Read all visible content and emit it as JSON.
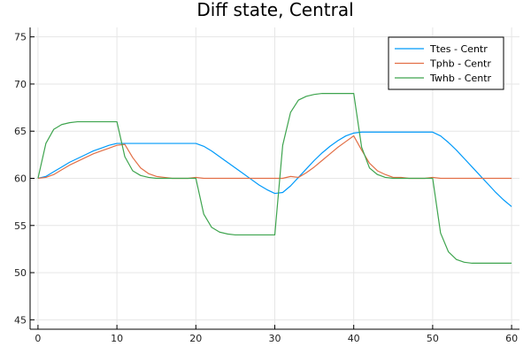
{
  "chart_data": {
    "type": "line",
    "title": "Diff state, Central",
    "xlabel": "",
    "ylabel": "",
    "xlim": [
      -1,
      61
    ],
    "ylim": [
      44,
      76
    ],
    "xticks": [
      0,
      10,
      20,
      30,
      40,
      50,
      60
    ],
    "yticks": [
      45,
      50,
      55,
      60,
      65,
      70,
      75
    ],
    "grid": true,
    "legend_position": "top-right",
    "series": [
      {
        "name": "Ttes - Centr",
        "color": "#009AFA",
        "x": [
          0,
          1,
          2,
          3,
          4,
          5,
          6,
          7,
          8,
          9,
          10,
          11,
          12,
          13,
          14,
          15,
          16,
          17,
          18,
          19,
          20,
          21,
          22,
          23,
          24,
          25,
          26,
          27,
          28,
          29,
          30,
          31,
          32,
          33,
          34,
          35,
          36,
          37,
          38,
          39,
          40,
          41,
          42,
          43,
          44,
          45,
          46,
          47,
          48,
          49,
          50,
          51,
          52,
          53,
          54,
          55,
          56,
          57,
          58,
          59,
          60
        ],
        "y": [
          60,
          60.2,
          60.7,
          61.2,
          61.7,
          62.1,
          62.5,
          62.9,
          63.2,
          63.5,
          63.7,
          63.7,
          63.7,
          63.7,
          63.7,
          63.7,
          63.7,
          63.7,
          63.7,
          63.7,
          63.7,
          63.4,
          62.9,
          62.3,
          61.7,
          61.1,
          60.5,
          59.9,
          59.3,
          58.8,
          58.4,
          58.5,
          59.2,
          60.1,
          61,
          61.9,
          62.7,
          63.4,
          64,
          64.5,
          64.8,
          64.9,
          64.9,
          64.9,
          64.9,
          64.9,
          64.9,
          64.9,
          64.9,
          64.9,
          64.9,
          64.5,
          63.8,
          63,
          62.1,
          61.2,
          60.3,
          59.4,
          58.5,
          57.7,
          57
        ]
      },
      {
        "name": "Tphb - Centr",
        "color": "#E26F46",
        "x": [
          0,
          1,
          2,
          3,
          4,
          5,
          6,
          7,
          8,
          9,
          10,
          11,
          12,
          13,
          14,
          15,
          16,
          17,
          18,
          19,
          20,
          21,
          22,
          23,
          24,
          25,
          26,
          27,
          28,
          29,
          30,
          31,
          32,
          33,
          34,
          35,
          36,
          37,
          38,
          39,
          40,
          41,
          42,
          43,
          44,
          45,
          46,
          47,
          48,
          49,
          50,
          51,
          52,
          53,
          54,
          55,
          56,
          57,
          58,
          59,
          60
        ],
        "y": [
          60,
          60.1,
          60.4,
          60.9,
          61.4,
          61.8,
          62.2,
          62.6,
          62.9,
          63.2,
          63.5,
          63.6,
          62.2,
          61.1,
          60.5,
          60.2,
          60.1,
          60,
          60,
          60,
          60.1,
          60,
          60,
          60,
          60,
          60,
          60,
          60,
          60,
          60,
          60,
          60,
          60.2,
          60.1,
          60.6,
          61.2,
          61.9,
          62.6,
          63.3,
          63.9,
          64.5,
          63,
          61.6,
          60.8,
          60.4,
          60.1,
          60.1,
          60,
          60,
          60,
          60.1,
          60,
          60,
          60,
          60,
          60,
          60,
          60,
          60,
          60,
          60
        ]
      },
      {
        "name": "Twhb - Centr",
        "color": "#3EA44E",
        "x": [
          0,
          1,
          2,
          3,
          4,
          5,
          6,
          7,
          8,
          9,
          10,
          11,
          12,
          13,
          14,
          15,
          16,
          17,
          18,
          19,
          20,
          21,
          22,
          23,
          24,
          25,
          26,
          27,
          28,
          29,
          30,
          31,
          32,
          33,
          34,
          35,
          36,
          37,
          38,
          39,
          40,
          41,
          42,
          43,
          44,
          45,
          46,
          47,
          48,
          49,
          50,
          51,
          52,
          53,
          54,
          55,
          56,
          57,
          58,
          59,
          60
        ],
        "y": [
          60,
          63.7,
          65.2,
          65.7,
          65.9,
          66,
          66,
          66,
          66,
          66,
          66,
          62.3,
          60.8,
          60.3,
          60.1,
          60,
          60,
          60,
          60,
          60,
          60,
          56.2,
          54.8,
          54.3,
          54.1,
          54,
          54,
          54,
          54,
          54,
          54,
          63.5,
          67,
          68.3,
          68.7,
          68.9,
          69,
          69,
          69,
          69,
          69,
          63.3,
          61.1,
          60.4,
          60.1,
          60,
          60,
          60,
          60,
          60,
          60,
          54.2,
          52.2,
          51.4,
          51.1,
          51,
          51,
          51,
          51,
          51,
          51
        ]
      }
    ]
  }
}
